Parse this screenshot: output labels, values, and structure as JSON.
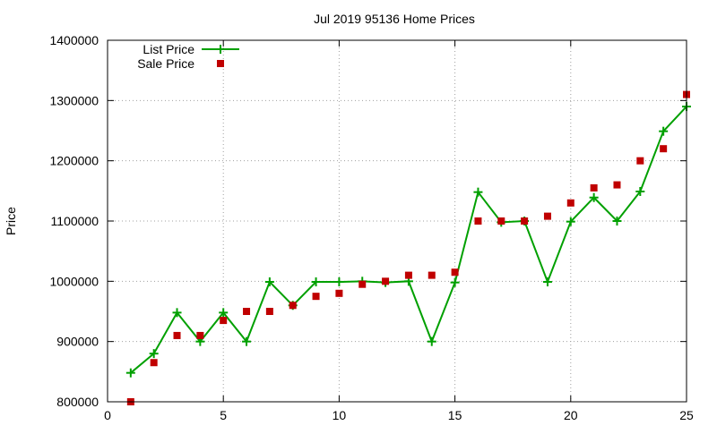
{
  "chart_data": {
    "type": "line",
    "title": "Jul 2019 95136 Home Prices",
    "xlabel": "",
    "ylabel": "Price",
    "xlim": [
      0,
      25
    ],
    "ylim": [
      800000,
      1400000
    ],
    "x_ticks": [
      0,
      5,
      10,
      15,
      20,
      25
    ],
    "y_ticks": [
      800000,
      900000,
      1000000,
      1100000,
      1200000,
      1300000,
      1400000
    ],
    "grid": true,
    "legend_position": "top-left",
    "series": [
      {
        "name": "List Price",
        "style": "line-with-plus-markers",
        "color": "#00a000",
        "x": [
          1,
          2,
          3,
          4,
          5,
          6,
          7,
          8,
          9,
          10,
          11,
          12,
          13,
          14,
          15,
          16,
          17,
          18,
          19,
          20,
          21,
          22,
          23,
          24,
          25
        ],
        "y": [
          848000,
          880000,
          948000,
          900000,
          948000,
          900000,
          999000,
          960000,
          999000,
          999000,
          1000000,
          998000,
          1000000,
          900000,
          998000,
          1148000,
          1098000,
          1100000,
          999000,
          1099000,
          1139000,
          1100000,
          1149000,
          1249000,
          1290000
        ]
      },
      {
        "name": "Sale Price",
        "style": "square-markers",
        "color": "#c00000",
        "x": [
          1,
          2,
          3,
          4,
          5,
          6,
          7,
          8,
          9,
          10,
          11,
          12,
          13,
          14,
          15,
          16,
          17,
          18,
          19,
          20,
          21,
          22,
          23,
          24,
          25
        ],
        "y": [
          800000,
          865000,
          910000,
          910000,
          935000,
          950000,
          950000,
          960000,
          975000,
          980000,
          995000,
          1000000,
          1010000,
          1010000,
          1015000,
          1100000,
          1100000,
          1100000,
          1108000,
          1130000,
          1155000,
          1160000,
          1200000,
          1220000,
          1310000
        ]
      }
    ]
  }
}
